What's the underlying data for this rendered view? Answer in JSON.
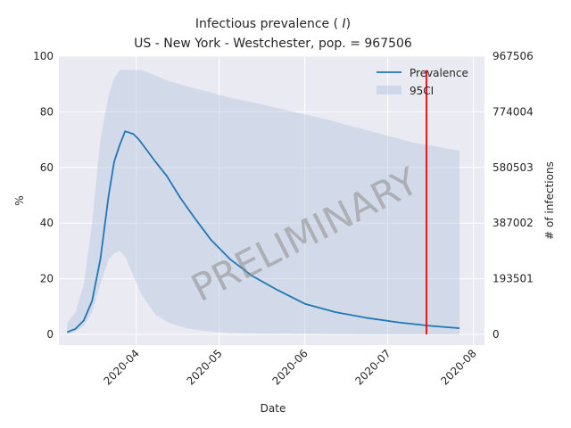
{
  "chart_data": {
    "type": "area",
    "title_line1": "Infectious prevalence (I)",
    "title_line2": "US - New York - Westchester, pop. = 967506",
    "xlabel": "Date",
    "ylabel": "%",
    "ylabel_right": "# of infections",
    "ylim": [
      0,
      100
    ],
    "xlim": [
      "2020-03-04",
      "2020-08-05"
    ],
    "x_ticks": [
      "2020-04",
      "2020-05",
      "2020-06",
      "2020-07",
      "2020-08"
    ],
    "y_ticks": [
      "0",
      "20",
      "40",
      "60",
      "80",
      "100"
    ],
    "y_right_ticks": [
      "0",
      "193501",
      "387002",
      "580503",
      "774004",
      "967506"
    ],
    "grid": true,
    "legend_position": "top-right",
    "watermark": "PRELIMINARY",
    "vline_date": "2020-07-15",
    "series": [
      {
        "name": "Prevalence",
        "x": [
          "2020-03-07",
          "2020-03-10",
          "2020-03-13",
          "2020-03-16",
          "2020-03-19",
          "2020-03-22",
          "2020-03-24",
          "2020-03-26",
          "2020-03-28",
          "2020-03-31",
          "2020-04-02",
          "2020-04-05",
          "2020-04-08",
          "2020-04-12",
          "2020-04-17",
          "2020-04-22",
          "2020-04-28",
          "2020-05-05",
          "2020-05-13",
          "2020-05-22",
          "2020-06-01",
          "2020-06-12",
          "2020-06-23",
          "2020-07-05",
          "2020-07-17",
          "2020-07-27"
        ],
        "values": [
          0.8,
          2,
          5,
          12,
          27,
          50,
          62,
          68,
          73,
          72,
          70,
          66,
          62,
          57,
          49,
          42,
          34,
          27,
          21,
          16,
          11,
          8,
          6,
          4.3,
          3,
          2.2
        ],
        "color": "#1f77b4"
      },
      {
        "name": "95CI",
        "x": [
          "2020-03-07",
          "2020-03-10",
          "2020-03-13",
          "2020-03-16",
          "2020-03-19",
          "2020-03-22",
          "2020-03-24",
          "2020-03-26",
          "2020-03-28",
          "2020-03-31",
          "2020-04-03",
          "2020-04-08",
          "2020-04-13",
          "2020-04-20",
          "2020-04-28",
          "2020-05-05",
          "2020-05-15",
          "2020-05-28",
          "2020-06-10",
          "2020-06-25",
          "2020-07-10",
          "2020-07-27"
        ],
        "upper": [
          4,
          8,
          18,
          40,
          70,
          86,
          92,
          95,
          95,
          95,
          95,
          93,
          91,
          89,
          87,
          85,
          83,
          80,
          77,
          73,
          69,
          66
        ],
        "lower": [
          0,
          1,
          3,
          8,
          18,
          27,
          29,
          30,
          28,
          21,
          14,
          7,
          4,
          2,
          1,
          0.5,
          0.3,
          0.2,
          0.1,
          0,
          0,
          0
        ],
        "color": "#b0c4de"
      }
    ]
  }
}
